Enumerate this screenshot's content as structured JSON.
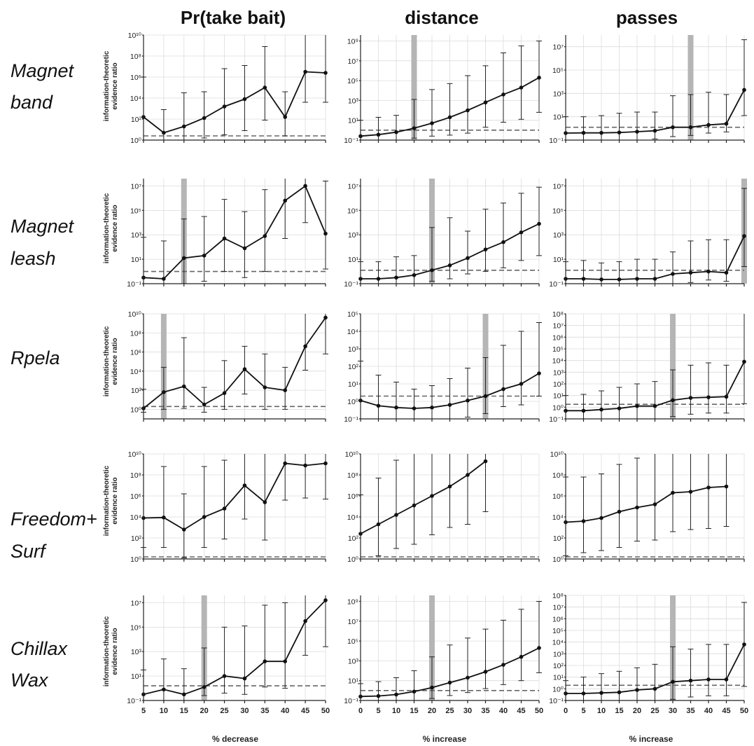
{
  "figure": {
    "column_titles": [
      "Pr(take bait)",
      "distance",
      "passes"
    ],
    "row_labels": [
      [
        "Magnet",
        "band"
      ],
      [
        "Magnet",
        "leash"
      ],
      [
        "Rpela"
      ],
      [
        "Freedom+",
        "Surf"
      ],
      [
        "Chillax",
        "Wax"
      ]
    ],
    "y_axis_label": [
      "information-theoretic",
      "evidence ratio"
    ],
    "x_axis_labels": [
      "% decrease",
      "% increase",
      "% increase"
    ],
    "colors": {
      "line": "#111111",
      "band": "#b5b5b5",
      "threshold": "#666666",
      "grid": "#dcdcdc"
    }
  },
  "chart_data": [
    {
      "type": "line",
      "row": 0,
      "col": 0,
      "y_scale": "log",
      "ylim_exp": [
        0,
        10
      ],
      "y_ticks_exp": [
        0,
        2,
        4,
        6,
        8,
        10
      ],
      "x": [
        5,
        10,
        15,
        20,
        25,
        30,
        35,
        40,
        45,
        50
      ],
      "xlim": [
        5,
        50
      ],
      "x_ticks": [
        5,
        10,
        15,
        20,
        25,
        30,
        35,
        40,
        45,
        50
      ],
      "y_exp": [
        2.2,
        0.7,
        1.3,
        2.1,
        3.2,
        3.9,
        5.0,
        2.2,
        6.5,
        6.4
      ],
      "err_lo_exp": [
        0.0,
        -0.4,
        -0.3,
        0.2,
        0.5,
        0.9,
        1.9,
        0.4,
        3.6,
        3.6
      ],
      "err_hi_exp": [
        6.0,
        2.9,
        4.5,
        4.6,
        6.8,
        7.1,
        8.9,
        4.6,
        10.0,
        10.0
      ],
      "threshold_exp": 0.4,
      "band_x": null
    },
    {
      "type": "line",
      "row": 0,
      "col": 1,
      "y_scale": "log",
      "ylim_exp": [
        -1,
        9.6
      ],
      "y_ticks_exp": [
        -1,
        1,
        3,
        5,
        7,
        9
      ],
      "x": [
        0,
        5,
        10,
        15,
        20,
        25,
        30,
        35,
        40,
        45,
        50
      ],
      "xlim": [
        0,
        50
      ],
      "x_ticks": [
        0,
        5,
        10,
        15,
        20,
        25,
        30,
        35,
        40,
        45,
        50
      ],
      "y_exp": [
        -0.6,
        -0.45,
        -0.2,
        0.2,
        0.7,
        1.3,
        2.0,
        2.8,
        3.6,
        4.3,
        5.3
      ],
      "err_lo_exp": [
        -1.0,
        -1.0,
        -1.0,
        -0.8,
        -0.6,
        -0.5,
        -0.3,
        0.3,
        0.8,
        1.1,
        1.8
      ],
      "err_hi_exp": [
        1.0,
        1.3,
        1.5,
        3.1,
        4.1,
        4.7,
        5.5,
        6.5,
        7.8,
        8.5,
        9.0
      ],
      "threshold_exp": 0.0,
      "band_x": 15
    },
    {
      "type": "line",
      "row": 0,
      "col": 2,
      "y_scale": "log",
      "ylim_exp": [
        -1,
        8
      ],
      "y_ticks_exp": [
        -1,
        1,
        3,
        5,
        7
      ],
      "x": [
        0,
        5,
        10,
        15,
        20,
        25,
        30,
        35,
        40,
        45,
        50
      ],
      "xlim": [
        0,
        50
      ],
      "x_ticks": [
        0,
        5,
        10,
        15,
        20,
        25,
        30,
        35,
        40,
        45,
        50
      ],
      "y_exp": [
        -0.4,
        -0.38,
        -0.38,
        -0.35,
        -0.28,
        -0.2,
        0.1,
        0.1,
        0.3,
        0.4,
        3.3
      ],
      "err_lo_exp": [
        -1.0,
        -1.0,
        -1.0,
        -1.0,
        -1.0,
        -0.9,
        -0.7,
        -0.6,
        -0.4,
        -0.3,
        1.1
      ],
      "err_hi_exp": [
        1.0,
        1.0,
        1.1,
        1.3,
        1.4,
        1.4,
        2.8,
        2.9,
        3.1,
        2.9,
        7.6
      ],
      "threshold_exp": 0.1,
      "band_x": 35
    },
    {
      "type": "line",
      "row": 1,
      "col": 0,
      "y_scale": "log",
      "ylim_exp": [
        -1,
        7.6
      ],
      "y_ticks_exp": [
        -1,
        1,
        3,
        5,
        7
      ],
      "x": [
        5,
        10,
        15,
        20,
        25,
        30,
        35,
        40,
        45,
        50
      ],
      "xlim": [
        5,
        50
      ],
      "x_ticks": [
        5,
        10,
        15,
        20,
        25,
        30,
        35,
        40,
        45,
        50
      ],
      "y_exp": [
        -0.5,
        -0.6,
        1.1,
        1.3,
        2.7,
        1.9,
        2.9,
        5.8,
        7.0,
        3.1
      ],
      "err_lo_exp": [
        -1.0,
        -1.0,
        -1.0,
        -0.8,
        0.0,
        -0.5,
        0.0,
        2.7,
        4.0,
        0.2
      ],
      "err_hi_exp": [
        2.8,
        2.5,
        4.3,
        4.5,
        5.9,
        4.9,
        6.7,
        7.6,
        7.6,
        7.4
      ],
      "threshold_exp": 0.0,
      "band_x": 15
    },
    {
      "type": "line",
      "row": 1,
      "col": 1,
      "y_scale": "log",
      "ylim_exp": [
        -1,
        7.6
      ],
      "y_ticks_exp": [
        -1,
        1,
        3,
        5,
        7
      ],
      "x": [
        0,
        5,
        10,
        15,
        20,
        25,
        30,
        35,
        40,
        45,
        50
      ],
      "xlim": [
        0,
        50
      ],
      "x_ticks": [
        0,
        5,
        10,
        15,
        20,
        25,
        30,
        35,
        40,
        45,
        50
      ],
      "y_exp": [
        -0.6,
        -0.6,
        -0.5,
        -0.3,
        0.1,
        0.5,
        1.1,
        1.8,
        2.4,
        3.2,
        3.9
      ],
      "err_lo_exp": [
        -1.0,
        -1.0,
        -1.0,
        -1.0,
        -0.8,
        -0.6,
        -0.2,
        0.0,
        0.3,
        0.9,
        1.3
      ],
      "err_hi_exp": [
        0.8,
        0.8,
        1.2,
        1.3,
        3.6,
        4.4,
        3.3,
        5.1,
        5.6,
        6.4,
        6.9
      ],
      "threshold_exp": 0.1,
      "band_x": 20
    },
    {
      "type": "line",
      "row": 1,
      "col": 2,
      "y_scale": "log",
      "ylim_exp": [
        -1,
        7.6
      ],
      "y_ticks_exp": [
        -1,
        1,
        3,
        5,
        7
      ],
      "x": [
        0,
        5,
        10,
        15,
        20,
        25,
        30,
        35,
        40,
        45,
        50
      ],
      "xlim": [
        0,
        50
      ],
      "x_ticks": [
        0,
        5,
        10,
        15,
        20,
        25,
        30,
        35,
        40,
        45,
        50
      ],
      "y_exp": [
        -0.6,
        -0.6,
        -0.65,
        -0.65,
        -0.6,
        -0.6,
        -0.2,
        -0.1,
        0.0,
        -0.1,
        2.9
      ],
      "err_lo_exp": [
        -1.0,
        -1.0,
        -1.0,
        -1.0,
        -1.0,
        -1.0,
        -1.0,
        -0.9,
        -0.7,
        -0.8,
        0.4
      ],
      "err_hi_exp": [
        0.8,
        0.9,
        0.7,
        0.8,
        1.0,
        1.0,
        1.6,
        2.5,
        2.6,
        2.6,
        6.8
      ],
      "threshold_exp": 0.1,
      "band_x": 50
    },
    {
      "type": "line",
      "row": 2,
      "col": 0,
      "y_scale": "log",
      "ylim_exp": [
        -1,
        10
      ],
      "y_ticks_exp": [
        0,
        2,
        4,
        6,
        8,
        10
      ],
      "x": [
        5,
        10,
        15,
        20,
        25,
        30,
        35,
        40,
        45,
        50
      ],
      "xlim": [
        5,
        50
      ],
      "x_ticks": [
        5,
        10,
        15,
        20,
        25,
        30,
        35,
        40,
        45,
        50
      ],
      "y_exp": [
        0.1,
        1.8,
        2.4,
        0.5,
        1.7,
        4.2,
        2.3,
        2.0,
        6.6,
        9.6
      ],
      "err_lo_exp": [
        -0.3,
        0.0,
        0.1,
        -0.3,
        0.0,
        1.6,
        0.0,
        0.0,
        4.1,
        5.8
      ],
      "err_hi_exp": [
        2.1,
        4.4,
        7.5,
        2.3,
        5.1,
        6.6,
        5.8,
        4.4,
        10.0,
        10.0
      ],
      "threshold_exp": 0.3,
      "band_x": 10
    },
    {
      "type": "line",
      "row": 2,
      "col": 1,
      "y_scale": "log",
      "ylim_exp": [
        -1,
        5
      ],
      "y_ticks_exp": [
        -1,
        0,
        1,
        2,
        3,
        4,
        5
      ],
      "x": [
        0,
        5,
        10,
        15,
        20,
        25,
        30,
        35,
        40,
        45,
        50
      ],
      "xlim": [
        0,
        50
      ],
      "x_ticks": [
        0,
        5,
        10,
        15,
        20,
        25,
        30,
        35,
        40,
        45,
        50
      ],
      "y_exp": [
        0.05,
        -0.25,
        -0.35,
        -0.4,
        -0.35,
        -0.2,
        0.05,
        0.3,
        0.7,
        1.0,
        1.6
      ],
      "err_lo_exp": [
        -1.0,
        -1.0,
        -1.0,
        -1.0,
        -1.0,
        -1.0,
        -0.9,
        -0.7,
        -0.3,
        -0.2,
        0.3
      ],
      "err_hi_exp": [
        2.3,
        1.5,
        1.1,
        0.7,
        0.9,
        1.3,
        1.9,
        2.5,
        3.2,
        4.0,
        4.5
      ],
      "threshold_exp": 0.3,
      "band_x": 35
    },
    {
      "type": "line",
      "row": 2,
      "col": 2,
      "y_scale": "log",
      "ylim_exp": [
        -1,
        8
      ],
      "y_ticks_exp": [
        -1,
        0,
        1,
        2,
        3,
        4,
        5,
        6,
        7,
        8
      ],
      "x": [
        0,
        5,
        10,
        15,
        20,
        25,
        30,
        35,
        40,
        45,
        50
      ],
      "xlim": [
        0,
        50
      ],
      "x_ticks": [
        0,
        5,
        10,
        15,
        20,
        25,
        30,
        35,
        40,
        45,
        50
      ],
      "y_exp": [
        -0.3,
        -0.3,
        -0.2,
        -0.1,
        0.1,
        0.1,
        0.6,
        0.8,
        0.85,
        0.9,
        3.9
      ],
      "err_lo_exp": [
        -1.0,
        -1.0,
        -1.0,
        -1.0,
        -1.0,
        -1.0,
        -0.8,
        -0.6,
        -0.5,
        -0.5,
        0.3
      ],
      "err_hi_exp": [
        1.0,
        1.1,
        1.4,
        1.7,
        2.0,
        2.2,
        3.2,
        3.6,
        3.8,
        3.6,
        8.0
      ],
      "threshold_exp": 0.25,
      "band_x": 30
    },
    {
      "type": "line",
      "row": 3,
      "col": 0,
      "y_scale": "log",
      "ylim_exp": [
        0,
        10
      ],
      "y_ticks_exp": [
        0,
        2,
        4,
        6,
        8,
        10
      ],
      "x": [
        5,
        10,
        15,
        20,
        25,
        30,
        35,
        40,
        45,
        50
      ],
      "xlim": [
        5,
        50
      ],
      "x_ticks": [
        5,
        10,
        15,
        20,
        25,
        30,
        35,
        40,
        45,
        50
      ],
      "y_exp": [
        3.9,
        3.95,
        2.8,
        4.0,
        4.8,
        7.0,
        5.4,
        9.1,
        8.9,
        9.1
      ],
      "err_lo_exp": [
        1.1,
        1.1,
        0.1,
        1.1,
        1.9,
        3.8,
        1.8,
        5.6,
        5.8,
        5.7
      ],
      "err_hi_exp": [
        10.0,
        8.8,
        6.2,
        8.8,
        9.4,
        10.0,
        10.0,
        10.0,
        10.0,
        10.0
      ],
      "threshold_exp": 0.2,
      "band_x": null
    },
    {
      "type": "line",
      "row": 3,
      "col": 1,
      "y_scale": "log",
      "ylim_exp": [
        0,
        10
      ],
      "y_ticks_exp": [
        0,
        2,
        4,
        6,
        8,
        10
      ],
      "x": [
        0,
        5,
        10,
        15,
        20,
        25,
        30,
        35
      ],
      "xlim": [
        0,
        50
      ],
      "x_ticks": [
        0,
        5,
        10,
        15,
        20,
        25,
        30,
        35,
        40,
        45,
        50
      ],
      "y_exp": [
        2.4,
        3.3,
        4.2,
        5.1,
        6.0,
        6.9,
        8.0,
        9.3
      ],
      "err_lo_exp": [
        0.0,
        0.3,
        1.0,
        1.4,
        2.3,
        3.0,
        3.3,
        4.5
      ],
      "err_hi_exp": [
        6.1,
        7.7,
        9.4,
        10.0,
        10.0,
        10.0,
        10.0,
        10.0
      ],
      "threshold_exp": 0.2,
      "band_x": null
    },
    {
      "type": "line",
      "row": 3,
      "col": 2,
      "y_scale": "log",
      "ylim_exp": [
        0,
        10
      ],
      "y_ticks_exp": [
        0,
        2,
        4,
        6,
        8,
        10
      ],
      "x": [
        0,
        5,
        10,
        15,
        20,
        25,
        30,
        35,
        40,
        45
      ],
      "xlim": [
        0,
        50
      ],
      "x_ticks": [
        0,
        5,
        10,
        15,
        20,
        25,
        30,
        35,
        40,
        45,
        50
      ],
      "y_exp": [
        3.5,
        3.6,
        3.9,
        4.5,
        4.9,
        5.2,
        6.3,
        6.4,
        6.8,
        6.9
      ],
      "err_lo_exp": [
        0.3,
        0.6,
        0.8,
        1.1,
        1.7,
        1.8,
        2.6,
        2.8,
        2.9,
        3.1
      ],
      "err_hi_exp": [
        7.8,
        7.8,
        8.1,
        9.0,
        9.6,
        10.0,
        10.0,
        10.0,
        10.0,
        10.0
      ],
      "threshold_exp": 0.2,
      "band_x": null
    },
    {
      "type": "line",
      "row": 4,
      "col": 0,
      "y_scale": "log",
      "ylim_exp": [
        -1,
        7.6
      ],
      "y_ticks_exp": [
        -1,
        1,
        3,
        5,
        7
      ],
      "x": [
        5,
        10,
        15,
        20,
        25,
        30,
        35,
        40,
        45,
        50
      ],
      "xlim": [
        5,
        50
      ],
      "x_ticks": [
        5,
        10,
        15,
        20,
        25,
        30,
        35,
        40,
        45,
        50
      ],
      "y_exp": [
        -0.5,
        -0.1,
        -0.5,
        0.1,
        1.0,
        0.8,
        2.2,
        2.2,
        5.5,
        7.2
      ],
      "err_lo_exp": [
        -1.0,
        -1.0,
        -1.0,
        -0.6,
        -0.4,
        -0.5,
        0.1,
        0.0,
        2.7,
        3.4
      ],
      "err_hi_exp": [
        1.5,
        2.4,
        1.6,
        3.3,
        5.0,
        5.1,
        6.8,
        7.0,
        7.6,
        7.6
      ],
      "threshold_exp": 0.2,
      "band_x": 20
    },
    {
      "type": "line",
      "row": 4,
      "col": 1,
      "y_scale": "log",
      "ylim_exp": [
        -1,
        9.6
      ],
      "y_ticks_exp": [
        -1,
        1,
        3,
        5,
        7,
        9
      ],
      "x": [
        0,
        5,
        10,
        15,
        20,
        25,
        30,
        35,
        40,
        45,
        50
      ],
      "xlim": [
        0,
        50
      ],
      "x_ticks": [
        0,
        5,
        10,
        15,
        20,
        25,
        30,
        35,
        40,
        45,
        50
      ],
      "y_exp": [
        -0.6,
        -0.55,
        -0.4,
        -0.1,
        0.3,
        0.8,
        1.3,
        1.9,
        2.6,
        3.4,
        4.3
      ],
      "err_lo_exp": [
        -1.0,
        -1.0,
        -1.0,
        -1.0,
        -0.8,
        -0.5,
        -0.2,
        0.2,
        0.6,
        1.0,
        1.8
      ],
      "err_hi_exp": [
        0.7,
        0.9,
        1.3,
        2.0,
        3.4,
        4.6,
        5.3,
        6.2,
        7.1,
        8.2,
        9.0
      ],
      "threshold_exp": 0.0,
      "band_x": 20
    },
    {
      "type": "line",
      "row": 4,
      "col": 2,
      "y_scale": "log",
      "ylim_exp": [
        -1,
        8
      ],
      "y_ticks_exp": [
        -1,
        0,
        1,
        2,
        3,
        4,
        5,
        6,
        7,
        8
      ],
      "x": [
        0,
        5,
        10,
        15,
        20,
        25,
        30,
        35,
        40,
        45,
        50
      ],
      "xlim": [
        0,
        50
      ],
      "x_ticks": [
        0,
        5,
        10,
        15,
        20,
        25,
        30,
        35,
        40,
        45,
        50
      ],
      "y_exp": [
        -0.4,
        -0.4,
        -0.35,
        -0.3,
        -0.1,
        0.0,
        0.6,
        0.7,
        0.8,
        0.8,
        3.8
      ],
      "err_lo_exp": [
        -1.0,
        -1.0,
        -1.0,
        -1.0,
        -1.0,
        -1.0,
        -0.9,
        -0.7,
        -0.6,
        -0.6,
        0.2
      ],
      "err_hi_exp": [
        0.7,
        1.0,
        1.3,
        1.5,
        1.8,
        2.1,
        3.6,
        3.4,
        3.8,
        3.8,
        7.4
      ],
      "threshold_exp": 0.3,
      "band_x": 30
    }
  ]
}
